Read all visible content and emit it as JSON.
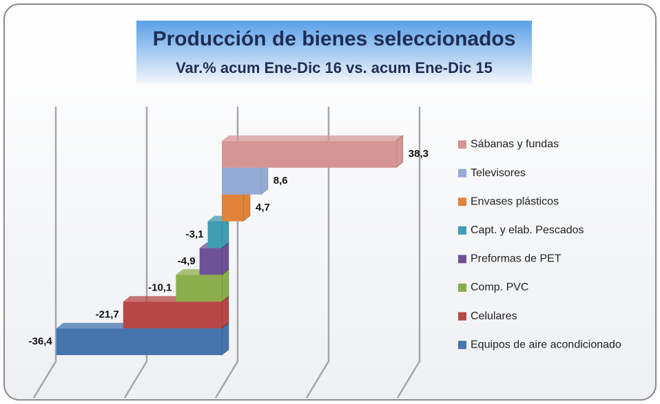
{
  "chart_data": {
    "type": "bar3d_horizontal",
    "title": "Producción de bienes seleccionados",
    "subtitle": "Var.% acum Ene-Dic 16 vs. acum Ene-Dic 15",
    "categories": [
      "Equipos de aire acondicionado",
      "Celulares",
      "Comp. PVC",
      "Preformas de PET",
      "Capt. y elab. Pescados",
      "Envases plásticos",
      "Televisores",
      "Sábanas y fundas"
    ],
    "values": [
      -36.4,
      -21.7,
      -10.1,
      -4.9,
      -3.1,
      4.7,
      8.6,
      38.3
    ],
    "value_labels": [
      "-36,4",
      "-21,7",
      "-10,1",
      "-4,9",
      "-3,1",
      "4,7",
      "8,6",
      "38,3"
    ],
    "colors": [
      "#4674ad",
      "#b54746",
      "#8cad4c",
      "#6e5297",
      "#3e9db0",
      "#e0843a",
      "#93aad4",
      "#d69595"
    ],
    "xlim": [
      -40,
      40
    ],
    "xticks": [
      -40,
      -20,
      0,
      20,
      40
    ],
    "grid": true
  }
}
